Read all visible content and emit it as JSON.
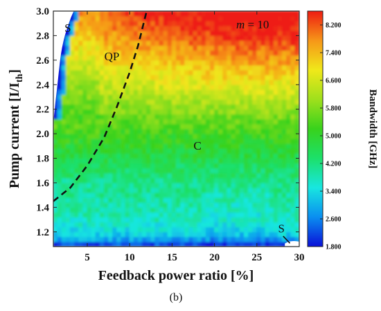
{
  "chart_data": {
    "type": "heatmap",
    "title": "",
    "panel_label": "(b)",
    "xlabel": "Feedback power ratio [%]",
    "ylabel_main": "Pump current [I/I",
    "ylabel_sub": "th",
    "ylabel_end": "]",
    "xlim": [
      1,
      30
    ],
    "ylim": [
      1.08,
      3.0
    ],
    "x_ticks": [
      5,
      10,
      15,
      20,
      25,
      30
    ],
    "y_ticks": [
      1.2,
      1.4,
      1.6,
      1.8,
      2.0,
      2.2,
      2.4,
      2.6,
      2.8,
      3.0
    ],
    "x_tick_labels": [
      "5",
      "10",
      "15",
      "20",
      "25",
      "30"
    ],
    "y_tick_labels": [
      "1.2",
      "1.4",
      "1.6",
      "1.8",
      "2.0",
      "2.2",
      "2.4",
      "2.6",
      "2.8",
      "3.0"
    ],
    "colorbar": {
      "label": "Bandwidth [GHz]",
      "min": 1.8,
      "max": 8.6,
      "ticks": [
        1.8,
        2.6,
        3.4,
        4.2,
        5.0,
        5.8,
        6.6,
        7.4,
        8.2
      ],
      "tick_labels": [
        "1.800",
        "2.600",
        "3.400",
        "4.200",
        "5.000",
        "5.800",
        "6.600",
        "7.400",
        "8.200"
      ],
      "colors": [
        "#0a10d8",
        "#0a8ef0",
        "#18e6e0",
        "#1ce06a",
        "#38d21c",
        "#9fe01c",
        "#f0e81a",
        "#f69618",
        "#ee1c12"
      ]
    },
    "parameter_annotation": {
      "italic": "m",
      "rest": " = 10",
      "x": 24.5,
      "y": 2.86
    },
    "region_labels": [
      {
        "text": "S",
        "x": 2.7,
        "y": 2.83
      },
      {
        "text": "QP",
        "x": 7.9,
        "y": 2.6
      },
      {
        "text": "C",
        "x": 18.0,
        "y": 1.87
      },
      {
        "text": "S",
        "x": 27.9,
        "y": 1.195
      }
    ],
    "boundary_curve": [
      [
        1.0,
        1.45
      ],
      [
        3.0,
        1.56
      ],
      [
        5.0,
        1.74
      ],
      [
        7.0,
        1.97
      ],
      [
        8.5,
        2.22
      ],
      [
        10.0,
        2.5
      ],
      [
        11.0,
        2.72
      ],
      [
        12.0,
        3.0
      ]
    ],
    "grid": false
  }
}
